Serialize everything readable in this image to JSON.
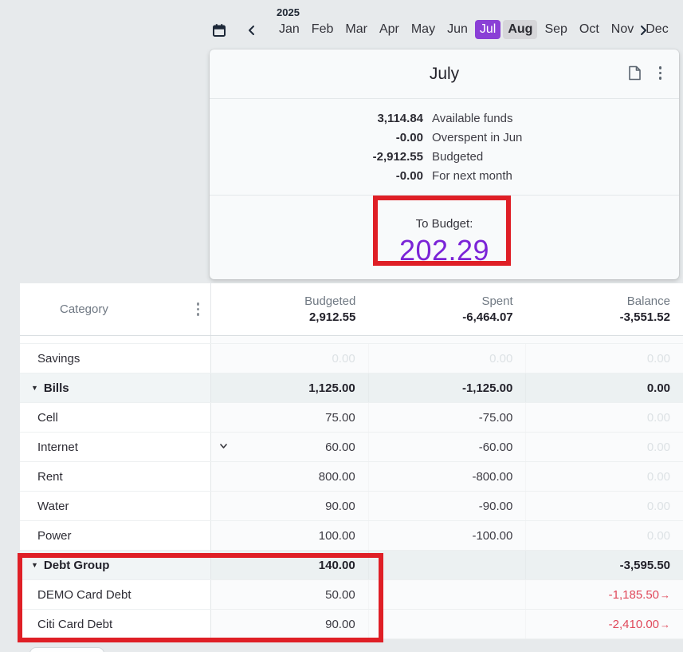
{
  "colors": {
    "accent_purple": "#8a3fd6",
    "to_budget_purple": "#7b24d7",
    "annotation_red": "#df1f26",
    "negative_red": "#e0485a"
  },
  "month_nav": {
    "year": "2025",
    "months": [
      "Jan",
      "Feb",
      "Mar",
      "Apr",
      "May",
      "Jun",
      "Jul",
      "Aug",
      "Sep",
      "Oct",
      "Nov",
      "Dec"
    ],
    "selected": "Jul",
    "hovered": "Aug"
  },
  "panel": {
    "title": "July",
    "summary": [
      {
        "value": "3,114.84",
        "label": "Available funds"
      },
      {
        "value": "-0.00",
        "label": "Overspent in Jun"
      },
      {
        "value": "-2,912.55",
        "label": "Budgeted"
      },
      {
        "value": "-0.00",
        "label": "For next month"
      }
    ],
    "to_budget": {
      "label": "To Budget:",
      "value": "202.29"
    }
  },
  "table": {
    "category_header": "Category",
    "columns": [
      {
        "label": "Budgeted",
        "total": "2,912.55"
      },
      {
        "label": "Spent",
        "total": "-6,464.07"
      },
      {
        "label": "Balance",
        "total": "-3,551.52"
      }
    ],
    "rows": [
      {
        "name": "Savings",
        "group": false,
        "budgeted": "0.00",
        "b_class": "faded",
        "spent": "0.00",
        "s_class": "faded",
        "balance": "0.00",
        "bal_class": "faded",
        "arrow": false,
        "dropdown": false
      },
      {
        "name": "Bills",
        "group": true,
        "budgeted": "1,125.00",
        "b_class": "bold",
        "spent": "-1,125.00",
        "s_class": "bold",
        "balance": "0.00",
        "bal_class": "bold",
        "arrow": false,
        "dropdown": false
      },
      {
        "name": "Cell",
        "group": false,
        "budgeted": "75.00",
        "b_class": "",
        "spent": "-75.00",
        "s_class": "",
        "balance": "0.00",
        "bal_class": "faded",
        "arrow": false,
        "dropdown": false
      },
      {
        "name": "Internet",
        "group": false,
        "budgeted": "60.00",
        "b_class": "",
        "spent": "-60.00",
        "s_class": "",
        "balance": "0.00",
        "bal_class": "faded",
        "arrow": false,
        "dropdown": true
      },
      {
        "name": "Rent",
        "group": false,
        "budgeted": "800.00",
        "b_class": "",
        "spent": "-800.00",
        "s_class": "",
        "balance": "0.00",
        "bal_class": "faded",
        "arrow": false,
        "dropdown": false
      },
      {
        "name": "Water",
        "group": false,
        "budgeted": "90.00",
        "b_class": "",
        "spent": "-90.00",
        "s_class": "",
        "balance": "0.00",
        "bal_class": "faded",
        "arrow": false,
        "dropdown": false
      },
      {
        "name": "Power",
        "group": false,
        "budgeted": "100.00",
        "b_class": "",
        "spent": "-100.00",
        "s_class": "",
        "balance": "0.00",
        "bal_class": "faded",
        "arrow": false,
        "dropdown": false
      },
      {
        "name": "Debt Group",
        "group": true,
        "budgeted": "140.00",
        "b_class": "bold",
        "spent": "",
        "s_class": "",
        "balance": "-3,595.50",
        "bal_class": "bold",
        "arrow": false,
        "dropdown": false
      },
      {
        "name": "DEMO Card Debt",
        "group": false,
        "budgeted": "50.00",
        "b_class": "",
        "spent": "",
        "s_class": "",
        "balance": "-1,185.50",
        "bal_class": "red",
        "arrow": true,
        "dropdown": false
      },
      {
        "name": "Citi Card Debt",
        "group": false,
        "budgeted": "90.00",
        "b_class": "",
        "spent": "",
        "s_class": "",
        "balance": "-2,410.00",
        "bal_class": "red",
        "arrow": true,
        "dropdown": false
      }
    ]
  },
  "annotations": [
    {
      "target": "to-budget-box"
    },
    {
      "target": "debt-group-rows"
    }
  ]
}
